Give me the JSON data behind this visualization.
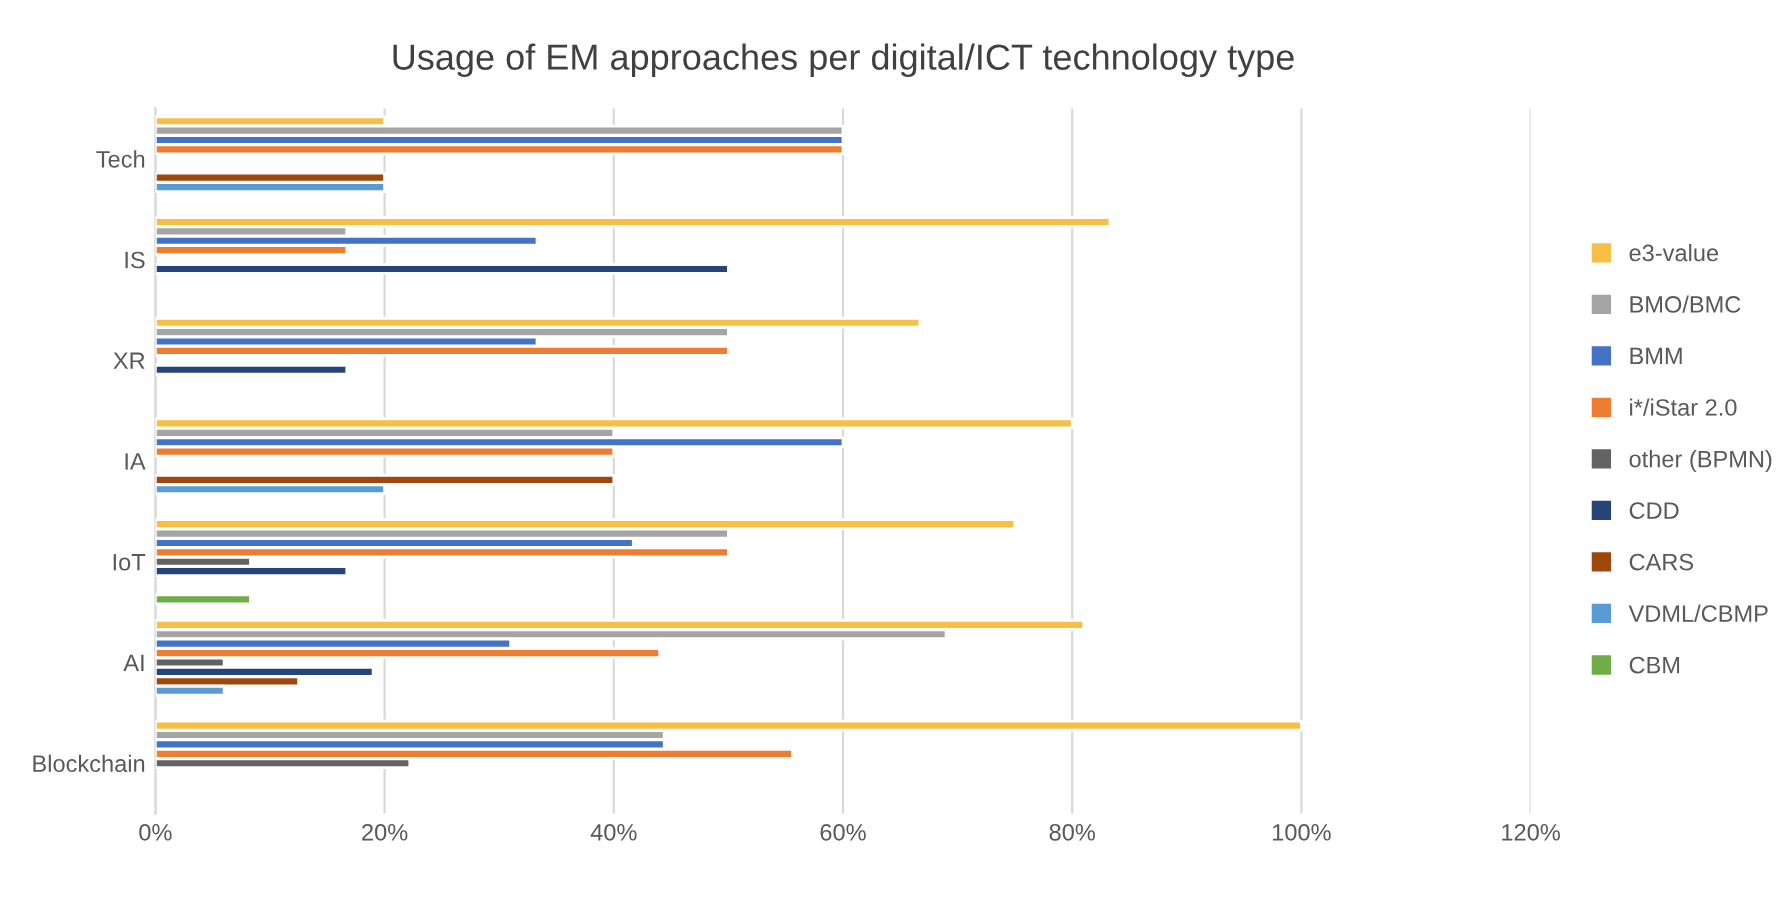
{
  "chart_data": {
    "type": "bar",
    "orientation": "horizontal",
    "title": "Usage of EM approaches per digital/ICT technology type",
    "categories": [
      "Tech",
      "IS",
      "XR",
      "IA",
      "IoT",
      "AI",
      "Blockchain"
    ],
    "series": [
      {
        "name": "e3-value",
        "color": "#f7bf45",
        "values": [
          20,
          83.3,
          66.7,
          80,
          75,
          81,
          100
        ]
      },
      {
        "name": "BMO/BMC",
        "color": "#a5a5a5",
        "values": [
          60,
          16.7,
          50,
          40,
          50,
          69,
          44.4
        ]
      },
      {
        "name": "BMM",
        "color": "#4472c4",
        "values": [
          60,
          33.3,
          33.3,
          60,
          41.7,
          31,
          44.4
        ]
      },
      {
        "name": "i*/iStar 2.0",
        "color": "#ed7d31",
        "values": [
          60,
          16.7,
          50,
          40,
          50,
          44,
          55.6
        ]
      },
      {
        "name": "other (BPMN)",
        "color": "#636363",
        "values": [
          null,
          null,
          null,
          null,
          8.3,
          6,
          22.2
        ]
      },
      {
        "name": "CDD",
        "color": "#264478",
        "values": [
          null,
          50,
          16.7,
          null,
          16.7,
          19,
          null
        ]
      },
      {
        "name": "CARS",
        "color": "#9e480e",
        "values": [
          20,
          null,
          null,
          40,
          null,
          12.5,
          null
        ]
      },
      {
        "name": "VDML/CBMP",
        "color": "#5b9bd5",
        "values": [
          20,
          null,
          null,
          20,
          null,
          6,
          null
        ]
      },
      {
        "name": "CBM",
        "color": "#70ad47",
        "values": [
          null,
          null,
          null,
          null,
          8.3,
          null,
          null
        ]
      }
    ],
    "xlim": [
      0,
      120
    ],
    "xticks": [
      {
        "value": 0,
        "label": "0%"
      },
      {
        "value": 20,
        "label": "20%"
      },
      {
        "value": 40,
        "label": "40%"
      },
      {
        "value": 60,
        "label": "60%"
      },
      {
        "value": 80,
        "label": "80%"
      },
      {
        "value": 100,
        "label": "100%"
      },
      {
        "value": 120,
        "label": "120%"
      }
    ],
    "grid": "x",
    "legend": "right"
  }
}
